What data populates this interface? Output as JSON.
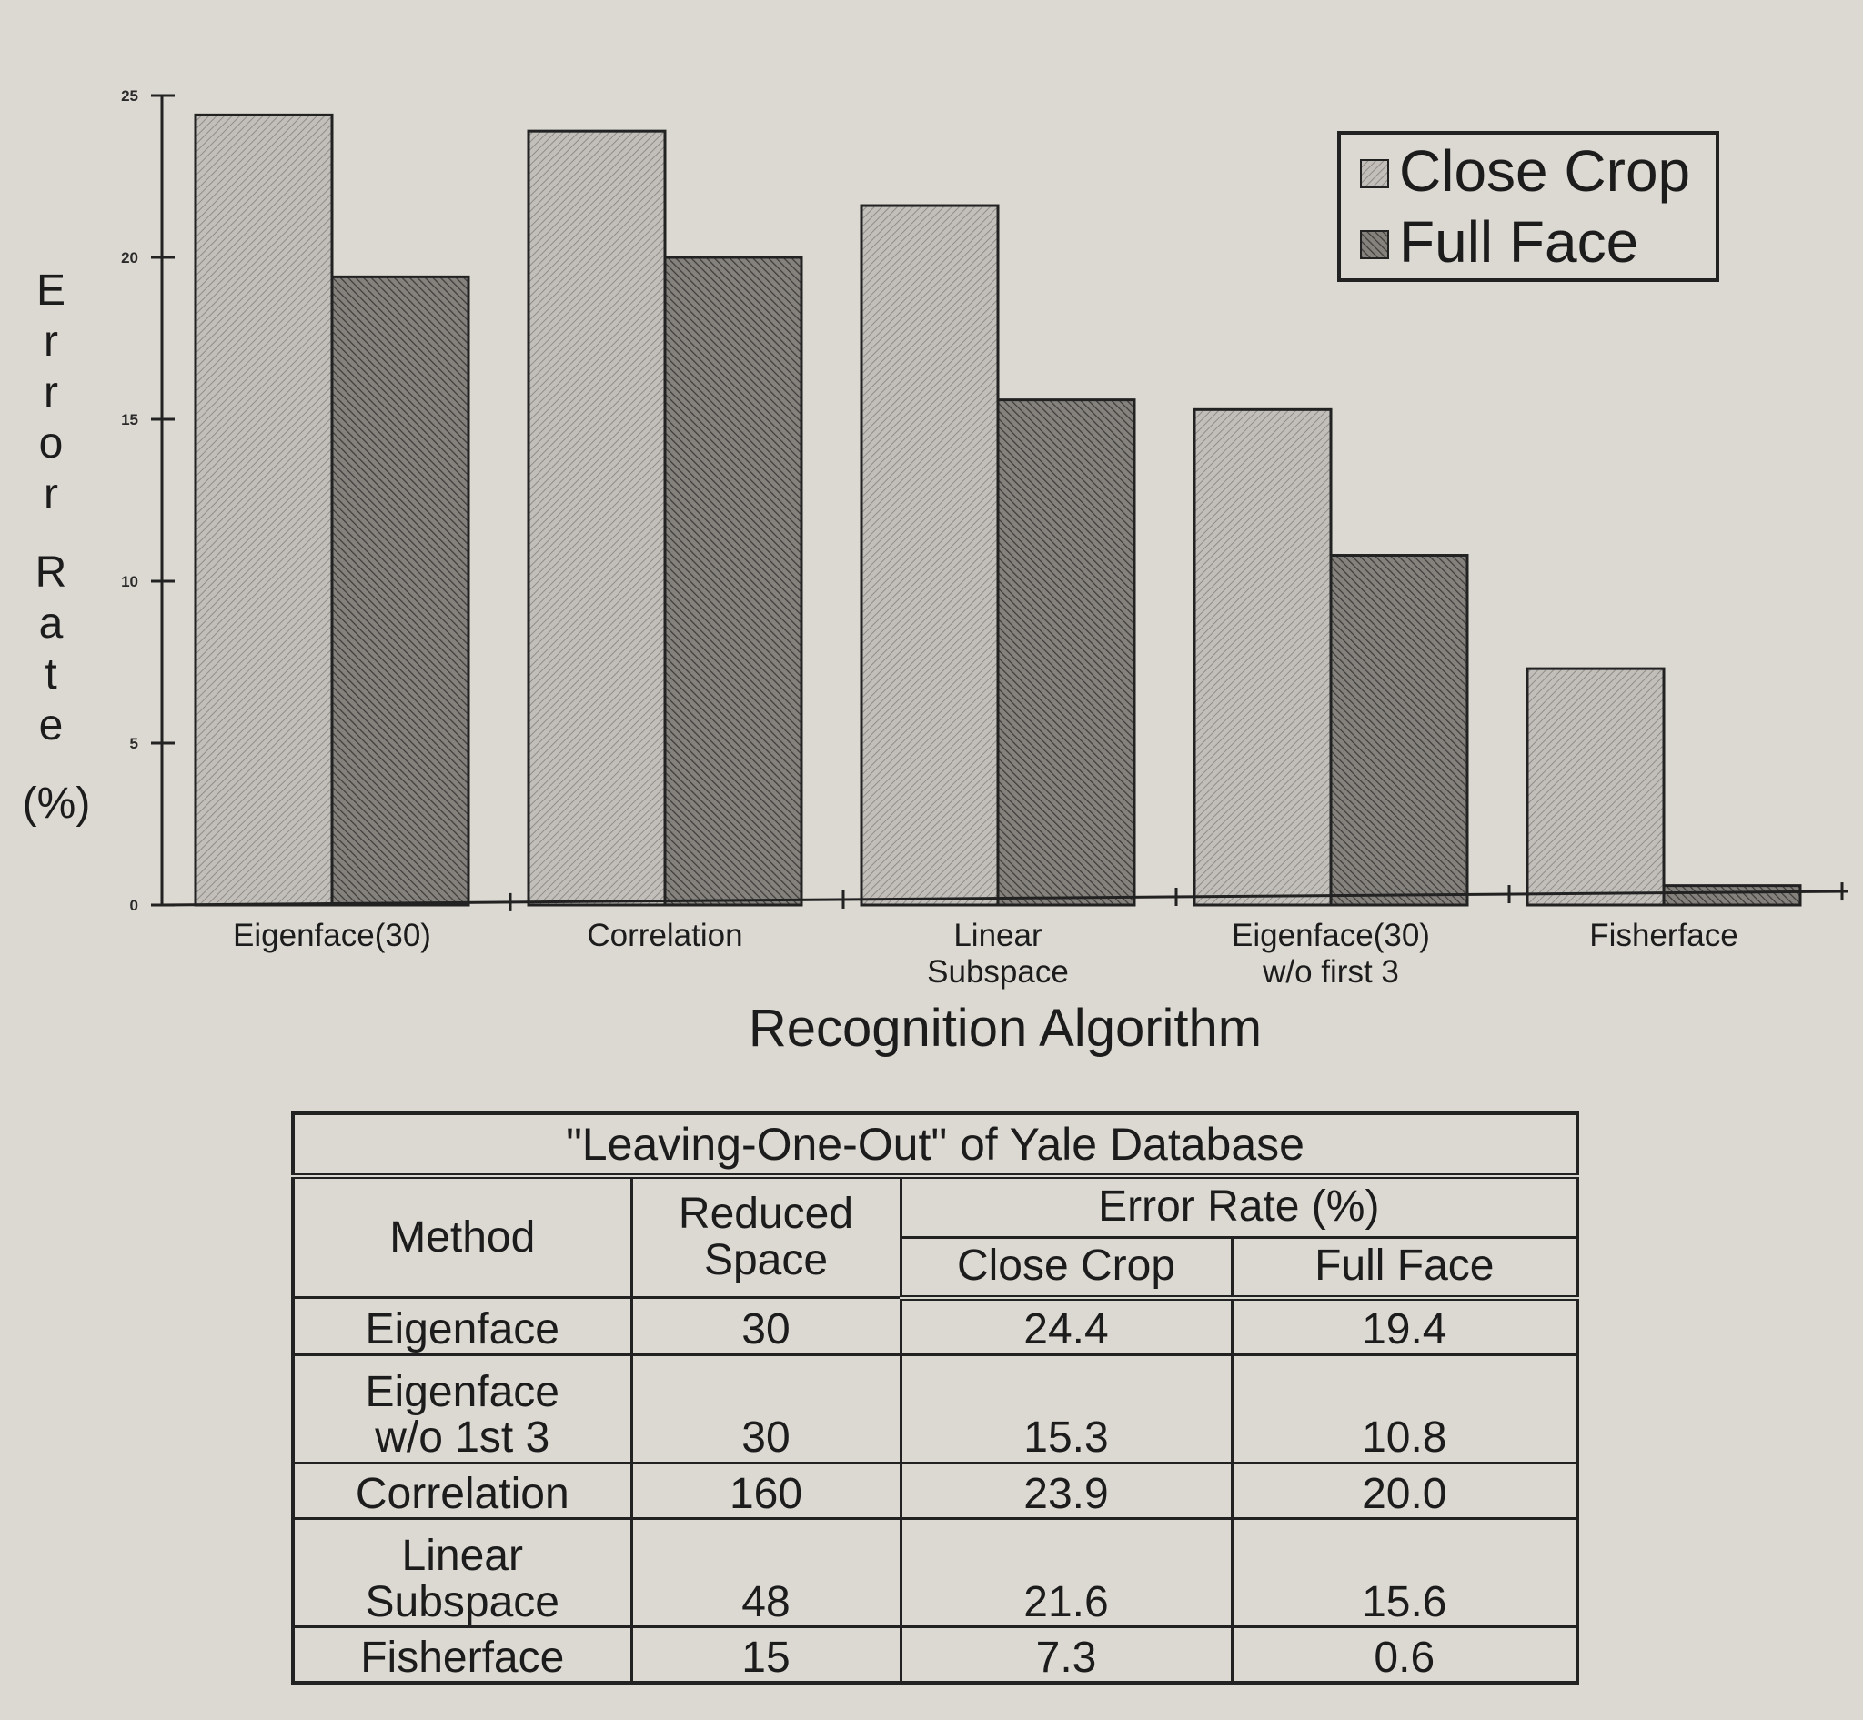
{
  "chart_data": {
    "type": "bar",
    "title": "",
    "xlabel": "Recognition Algorithm",
    "ylabel": "Error Rate (%)",
    "ylim": [
      0,
      25
    ],
    "yticks": [
      "0",
      "5",
      "10",
      "15",
      "20",
      "25"
    ],
    "categories": [
      [
        "Eigenface(30)"
      ],
      [
        "Correlation"
      ],
      [
        "Linear",
        "Subspace"
      ],
      [
        "Eigenface(30)",
        "w/o first 3"
      ],
      [
        "Fisherface"
      ]
    ],
    "series": [
      {
        "name": "Close Crop",
        "values": [
          24.4,
          23.9,
          21.6,
          15.3,
          7.3
        ]
      },
      {
        "name": "Full Face",
        "values": [
          19.4,
          20.0,
          15.6,
          10.8,
          0.6
        ]
      }
    ],
    "legend_position": "top-right",
    "grid": false
  },
  "table": {
    "caption": "\"Leaving-One-Out\" of Yale Database",
    "headers": {
      "method": "Method",
      "reduced_space_line1": "Reduced",
      "reduced_space_line2": "Space",
      "error_rate": "Error Rate (%)",
      "close_crop": "Close Crop",
      "full_face": "Full Face"
    },
    "rows": [
      {
        "method": [
          "Eigenface"
        ],
        "space": "30",
        "close": "24.4",
        "full": "19.4"
      },
      {
        "method": [
          "Eigenface",
          "w/o 1st 3"
        ],
        "space": "30",
        "close": "15.3",
        "full": "10.8"
      },
      {
        "method": [
          "Correlation"
        ],
        "space": "160",
        "close": "23.9",
        "full": "20.0"
      },
      {
        "method": [
          "Linear",
          "Subspace"
        ],
        "space": "48",
        "close": "21.6",
        "full": "15.6"
      },
      {
        "method": [
          "Fisherface"
        ],
        "space": "15",
        "close": "7.3",
        "full": "0.6"
      }
    ]
  },
  "colors": {
    "close_crop_fill": "#b8b5b0",
    "full_face_fill": "#74716d",
    "axis": "#222222"
  }
}
